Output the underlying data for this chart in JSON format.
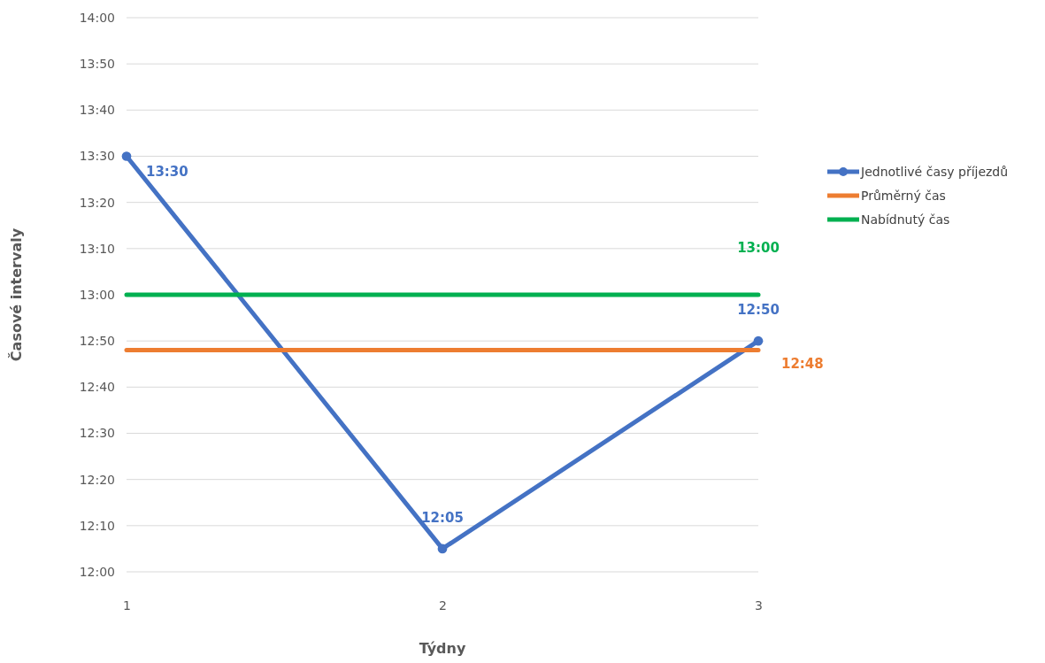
{
  "chart_data": {
    "type": "line",
    "xlabel": "Týdny",
    "ylabel": "Časové intervaly",
    "categories": [
      "1",
      "2",
      "3"
    ],
    "ylim": [
      12,
      14
    ],
    "yticks": [
      {
        "value": 12,
        "label": "12:00"
      },
      {
        "value": 12.1667,
        "label": "12:10"
      },
      {
        "value": 12.3333,
        "label": "12:20"
      },
      {
        "value": 12.5,
        "label": "12:30"
      },
      {
        "value": 12.6667,
        "label": "12:40"
      },
      {
        "value": 12.8333,
        "label": "12:50"
      },
      {
        "value": 13,
        "label": "13:00"
      },
      {
        "value": 13.1667,
        "label": "13:10"
      },
      {
        "value": 13.3333,
        "label": "13:20"
      },
      {
        "value": 13.5,
        "label": "13:30"
      },
      {
        "value": 13.6667,
        "label": "13:40"
      },
      {
        "value": 13.8333,
        "label": "13:50"
      },
      {
        "value": 14,
        "label": "14:00"
      }
    ],
    "grid": "y",
    "legend": "right",
    "series": [
      {
        "name": "Jednotlivé časy příjezdů",
        "color": "#4472c4",
        "marker": "circle",
        "values": [
          13.5,
          12.0833,
          12.8333
        ],
        "value_labels": [
          "13:30",
          "12:05",
          "12:50"
        ]
      },
      {
        "name": "Průměrný čas",
        "color": "#ed7d31",
        "values": [
          12.8,
          12.8,
          12.8
        ],
        "value_labels": [
          null,
          null,
          "12:48"
        ]
      },
      {
        "name": "Nabídnutý čas",
        "color": "#00b050",
        "values": [
          13,
          13,
          13
        ],
        "value_labels": [
          null,
          null,
          "13:00"
        ]
      }
    ]
  }
}
